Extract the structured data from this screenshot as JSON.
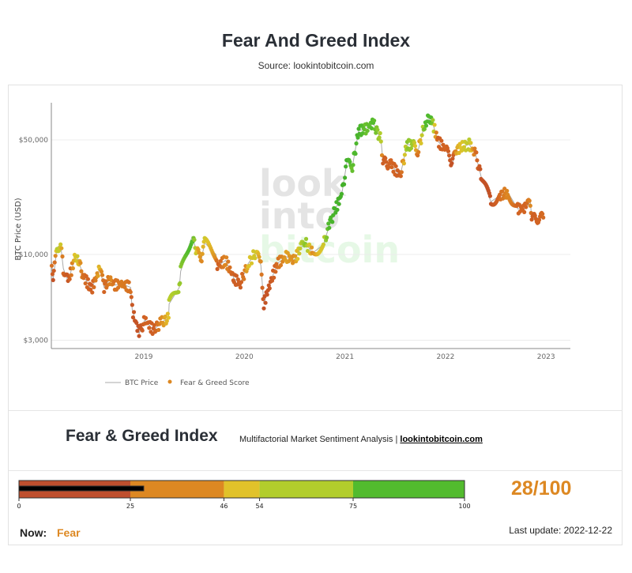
{
  "header": {
    "title": "Fear And Greed Index",
    "subtitle": "Source: lookintobitcoin.com"
  },
  "watermark": [
    "look",
    "into",
    "bitcoin"
  ],
  "chart_data": {
    "type": "scatter",
    "ylabel": "BTC Price (USD)",
    "yscale": "log",
    "ylim": [
      2700,
      80000
    ],
    "yticks": [
      {
        "v": 50000,
        "label": "$50,000"
      },
      {
        "v": 10000,
        "label": "$10,000"
      },
      {
        "v": 3000,
        "label": "$3,000"
      }
    ],
    "xlim": [
      "2018-02-01",
      "2023-01-15"
    ],
    "xticks": [
      "2019",
      "2020",
      "2021",
      "2022",
      "2023"
    ],
    "legend": {
      "position": "bottom",
      "items": [
        "BTC Price",
        "Fear & Greed Score"
      ]
    },
    "grid": true,
    "series": [
      {
        "name": "BTC Price",
        "color": "#aaaaaa"
      },
      {
        "name": "Fear & Greed Score",
        "color": "#dd8822"
      }
    ],
    "points": [
      [
        "2018-02-01",
        9000,
        30
      ],
      [
        "2018-02-06",
        7000,
        10
      ],
      [
        "2018-02-20",
        11000,
        60
      ],
      [
        "2018-03-05",
        11500,
        55
      ],
      [
        "2018-03-15",
        8200,
        25
      ],
      [
        "2018-04-01",
        6900,
        15
      ],
      [
        "2018-04-25",
        9300,
        50
      ],
      [
        "2018-05-05",
        9700,
        55
      ],
      [
        "2018-05-25",
        7500,
        30
      ],
      [
        "2018-06-25",
        6100,
        20
      ],
      [
        "2018-07-25",
        8200,
        50
      ],
      [
        "2018-08-10",
        6300,
        25
      ],
      [
        "2018-09-05",
        7300,
        40
      ],
      [
        "2018-09-15",
        6500,
        30
      ],
      [
        "2018-10-15",
        6600,
        35
      ],
      [
        "2018-11-14",
        6300,
        30
      ],
      [
        "2018-11-20",
        4600,
        15
      ],
      [
        "2018-12-15",
        3300,
        10
      ],
      [
        "2019-01-05",
        4000,
        25
      ],
      [
        "2019-02-05",
        3450,
        20
      ],
      [
        "2019-03-05",
        3850,
        40
      ],
      [
        "2019-04-01",
        4100,
        50
      ],
      [
        "2019-04-03",
        5000,
        60
      ],
      [
        "2019-05-10",
        6300,
        65
      ],
      [
        "2019-05-15",
        7900,
        70
      ],
      [
        "2019-06-25",
        12800,
        85
      ],
      [
        "2019-07-15",
        10200,
        45
      ],
      [
        "2019-07-30",
        9500,
        40
      ],
      [
        "2019-08-10",
        11800,
        55
      ],
      [
        "2019-09-20",
        10000,
        40
      ],
      [
        "2019-09-25",
        8500,
        20
      ],
      [
        "2019-10-25",
        9200,
        40
      ],
      [
        "2019-11-25",
        7100,
        20
      ],
      [
        "2019-12-18",
        6700,
        20
      ],
      [
        "2020-01-15",
        8800,
        50
      ],
      [
        "2020-02-12",
        10300,
        55
      ],
      [
        "2020-03-01",
        8600,
        40
      ],
      [
        "2020-03-12",
        5000,
        10
      ],
      [
        "2020-04-05",
        6800,
        15
      ],
      [
        "2020-04-30",
        8800,
        30
      ],
      [
        "2020-06-01",
        9700,
        45
      ],
      [
        "2020-07-01",
        9200,
        40
      ],
      [
        "2020-07-25",
        11000,
        60
      ],
      [
        "2020-08-10",
        11800,
        70
      ],
      [
        "2020-09-05",
        10200,
        40
      ],
      [
        "2020-10-15",
        11500,
        55
      ],
      [
        "2020-11-05",
        15000,
        85
      ],
      [
        "2020-11-25",
        18500,
        90
      ],
      [
        "2020-12-20",
        23000,
        92
      ],
      [
        "2021-01-10",
        38000,
        94
      ],
      [
        "2021-01-25",
        32000,
        75
      ],
      [
        "2021-02-20",
        57000,
        90
      ],
      [
        "2021-03-15",
        58000,
        75
      ],
      [
        "2021-04-14",
        63000,
        80
      ],
      [
        "2021-05-12",
        50000,
        60
      ],
      [
        "2021-05-19",
        37000,
        20
      ],
      [
        "2021-06-20",
        35000,
        25
      ],
      [
        "2021-07-20",
        30000,
        20
      ],
      [
        "2021-08-15",
        47000,
        70
      ],
      [
        "2021-09-07",
        46000,
        65
      ],
      [
        "2021-09-22",
        42000,
        30
      ],
      [
        "2021-10-20",
        65000,
        80
      ],
      [
        "2021-11-10",
        68000,
        82
      ],
      [
        "2021-12-05",
        49000,
        20
      ],
      [
        "2022-01-05",
        43000,
        25
      ],
      [
        "2022-01-24",
        35000,
        10
      ],
      [
        "2022-02-10",
        44000,
        45
      ],
      [
        "2022-03-28",
        47000,
        60
      ],
      [
        "2022-04-20",
        41000,
        30
      ],
      [
        "2022-05-10",
        30000,
        10
      ],
      [
        "2022-06-15",
        21000,
        10
      ],
      [
        "2022-07-20",
        23000,
        30
      ],
      [
        "2022-08-15",
        24000,
        40
      ],
      [
        "2022-09-20",
        19000,
        25
      ],
      [
        "2022-10-20",
        19200,
        25
      ],
      [
        "2022-11-05",
        21000,
        40
      ],
      [
        "2022-11-10",
        16500,
        20
      ],
      [
        "2022-12-22",
        16800,
        28
      ]
    ]
  },
  "index": {
    "title": "Fear & Greed Index",
    "subtitle": "Multifactorial Market Sentiment Analysis | ",
    "link": "lookintobitcoin.com",
    "value": 28,
    "score_text": "28/100",
    "bands": [
      {
        "from": 0,
        "to": 25,
        "color": "#bf4f2e"
      },
      {
        "from": 25,
        "to": 46,
        "color": "#dd8822"
      },
      {
        "from": 46,
        "to": 54,
        "color": "#e1c22a"
      },
      {
        "from": 54,
        "to": 75,
        "color": "#b2cd2c"
      },
      {
        "from": 75,
        "to": 100,
        "color": "#52bb2e"
      }
    ],
    "ticks": [
      "0",
      "25",
      "46",
      "54",
      "75",
      "100"
    ],
    "now_label": "Now:",
    "now_value": "Fear",
    "last_update": "Last update: 2022-12-22"
  }
}
